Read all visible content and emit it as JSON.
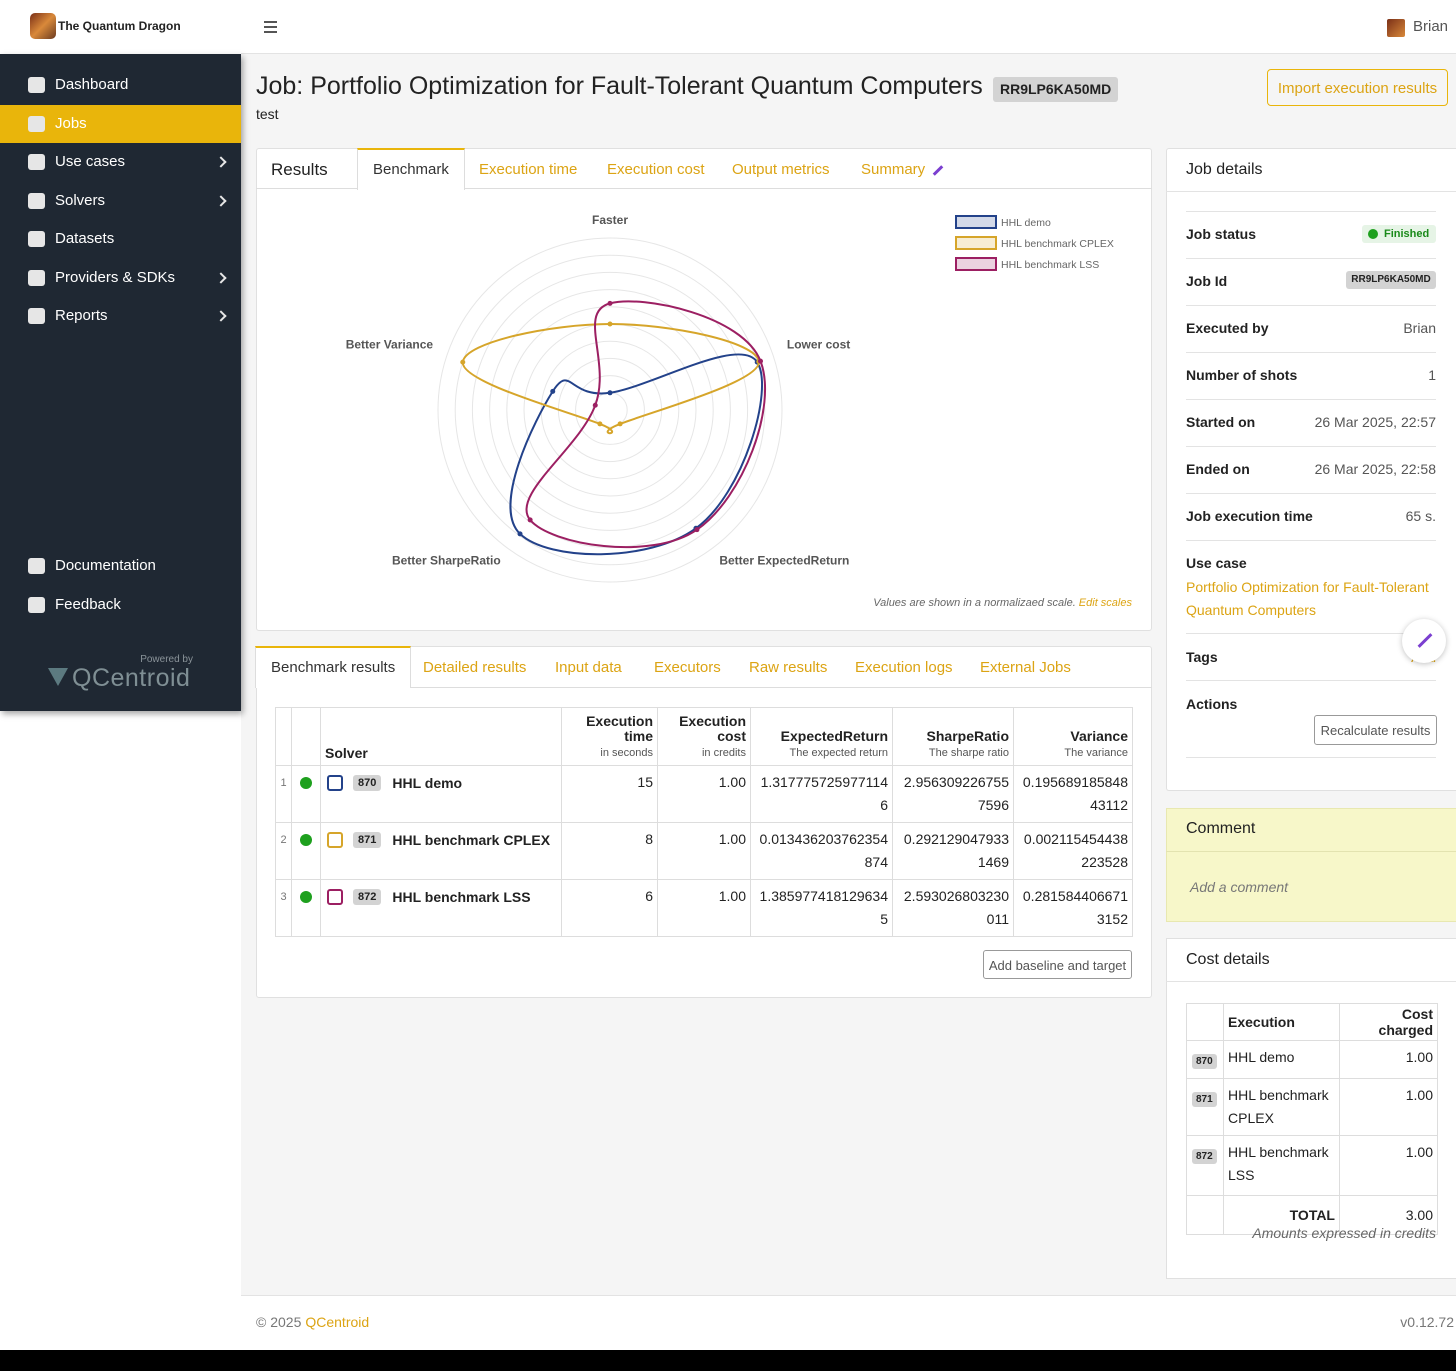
{
  "brand": "The Quantum Dragon",
  "nav": [
    {
      "label": "Dashboard"
    },
    {
      "label": "Jobs",
      "active": true
    },
    {
      "label": "Use cases",
      "submenu": true
    },
    {
      "label": "Solvers",
      "submenu": true
    },
    {
      "label": "Datasets"
    },
    {
      "label": "Providers & SDKs",
      "submenu": true
    },
    {
      "label": "Reports",
      "submenu": true
    }
  ],
  "nav_bottom": [
    "Documentation",
    "Feedback"
  ],
  "powered_by": "Powered by",
  "powered_brand": "QCentroid",
  "user": "Brian",
  "page": {
    "title": "Job: Portfolio Optimization for Fault-Tolerant Quantum Computers",
    "job_code": "RR9LP6KA50MD",
    "subtitle": "test",
    "import_button": "Import execution results"
  },
  "results_tabs": {
    "title": "Results",
    "tabs": [
      {
        "label": "Benchmark",
        "active": true
      },
      {
        "label": "Execution time"
      },
      {
        "label": "Execution cost"
      },
      {
        "label": "Output metrics"
      },
      {
        "label": "Summary"
      }
    ]
  },
  "chart_data": {
    "type": "radar",
    "categories": [
      "Faster",
      "Lower cost",
      "Better ExpectedReturn",
      "Better SharpeRatio",
      "Better Variance"
    ],
    "rlim": [
      0,
      1
    ],
    "rticks": [
      0.1,
      0.2,
      0.3,
      0.4,
      0.5,
      0.6,
      0.7,
      0.8,
      0.9,
      1
    ],
    "series": [
      {
        "name": "HHL demo",
        "color": "#23428a",
        "values": [
          0.1,
          0.9,
          0.85,
          0.89,
          0.35
        ]
      },
      {
        "name": "HHL benchmark CPLEX",
        "color": "#d6a52a",
        "values": [
          0.5,
          0.91,
          0.1,
          0.1,
          0.9
        ]
      },
      {
        "name": "HHL benchmark LSS",
        "color": "#9c1f62",
        "values": [
          0.62,
          0.92,
          0.86,
          0.79,
          0.09
        ]
      }
    ],
    "legend": "top-right",
    "note": "Values are shown in a normalizaed scale.",
    "note_link": "Edit scales"
  },
  "detail_tabs": [
    {
      "label": "Benchmark results",
      "active": true
    },
    {
      "label": "Detailed results"
    },
    {
      "label": "Input data"
    },
    {
      "label": "Executors"
    },
    {
      "label": "Raw results"
    },
    {
      "label": "Execution logs"
    },
    {
      "label": "External Jobs"
    }
  ],
  "benchmark_table": {
    "columns": [
      {
        "title": "Solver"
      },
      {
        "title": "Execution time",
        "sub": "in seconds"
      },
      {
        "title": "Execution cost",
        "sub": "in credits"
      },
      {
        "title": "ExpectedReturn",
        "sub": "The expected return"
      },
      {
        "title": "SharpeRatio",
        "sub": "The sharpe ratio"
      },
      {
        "title": "Variance",
        "sub": "The variance"
      }
    ],
    "rows": [
      {
        "n": 1,
        "id": "870",
        "name": "HHL demo",
        "cells": [
          15,
          "1.00",
          "1.3177757259771146",
          "2.9563092267557596",
          "0.19568918584843112"
        ]
      },
      {
        "n": 2,
        "id": "871",
        "name": "HHL benchmark CPLEX",
        "cells": [
          8,
          "1.00",
          "0.013436203762354874",
          "0.2921290479331469",
          "0.002115454438223528"
        ]
      },
      {
        "n": 3,
        "id": "872",
        "name": "HHL benchmark LSS",
        "cells": [
          6,
          "1.00",
          "1.3859774181296345",
          "2.593026803230011",
          "0.2815844066713152"
        ]
      }
    ],
    "button": "Add baseline and target"
  },
  "job_details": {
    "title": "Job details",
    "status": {
      "label": "Job status",
      "value": "Finished"
    },
    "id": {
      "label": "Job Id",
      "value": "RR9LP6KA50MD"
    },
    "rows": [
      {
        "label": "Executed by",
        "value": "Brian"
      },
      {
        "label": "Number of shots",
        "value": 1
      },
      {
        "label": "Started on",
        "value": "26 Mar 2025, 22:57"
      },
      {
        "label": "Ended on",
        "value": "26 Mar 2025, 22:58"
      },
      {
        "label": "Job execution time",
        "value": "65 s."
      }
    ],
    "use_case": {
      "label": "Use case",
      "value": "Portfolio Optimization for Fault-Tolerant Quantum Computers"
    },
    "tags": {
      "label": "Tags",
      "value": "Add"
    },
    "actions": {
      "label": "Actions",
      "button": "Recalculate results"
    }
  },
  "comment": {
    "title": "Comment",
    "placeholder": "Add a comment"
  },
  "cost_details": {
    "title": "Cost details",
    "columns": [
      "Execution",
      "Cost charged"
    ],
    "rows": [
      {
        "id": "870",
        "name": "HHL demo",
        "cost": "1.00"
      },
      {
        "id": "871",
        "name": "HHL benchmark CPLEX",
        "cost": "1.00"
      },
      {
        "id": "872",
        "name": "HHL benchmark LSS",
        "cost": "1.00"
      }
    ],
    "total": {
      "label": "TOTAL",
      "value": "3.00"
    },
    "note": "Amounts expressed in credits"
  },
  "footer": {
    "copyright": "© 2025",
    "link": "QCentroid",
    "version": "v0.12.72"
  }
}
